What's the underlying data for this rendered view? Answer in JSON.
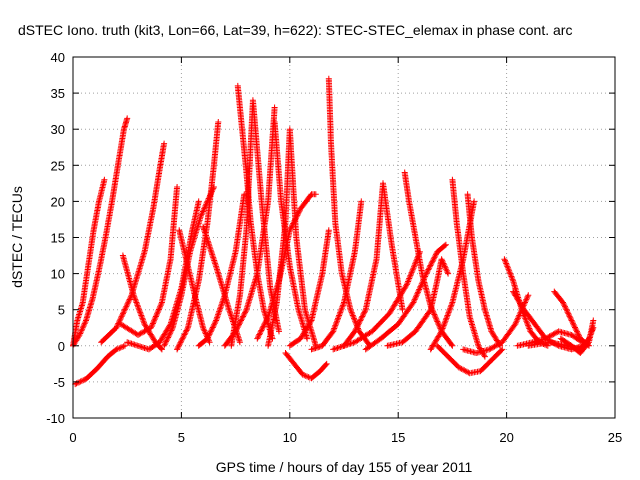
{
  "chart_data": {
    "type": "scatter",
    "title": "dSTEC Iono. truth (kit3, Lon=66, Lat=39, h=622): STEC-STEC_elemax in phase cont. arc",
    "xlabel": "GPS time / hours of day 155 of year 2011",
    "ylabel": "dSTEC  / TECUs",
    "xlim": [
      0,
      25
    ],
    "ylim": [
      -10,
      40
    ],
    "xticks": [
      0,
      5,
      10,
      15,
      20,
      25
    ],
    "yticks": [
      -10,
      -5,
      0,
      5,
      10,
      15,
      20,
      25,
      30,
      35,
      40
    ],
    "grid": true,
    "marker": "+",
    "marker_color": "#ff0000",
    "series": [
      {
        "x": [
          0.0,
          0.2,
          0.45,
          0.7,
          0.95,
          1.2,
          1.45
        ],
        "y": [
          0.0,
          3.5,
          6.0,
          11.0,
          16.0,
          20.0,
          23.0
        ]
      },
      {
        "x": [
          0.0,
          0.3,
          0.6,
          0.9,
          1.2,
          1.5,
          1.8,
          2.1,
          2.35,
          2.5
        ],
        "y": [
          0.0,
          1.5,
          3.5,
          6.5,
          10.5,
          15.0,
          20.0,
          25.5,
          30.0,
          31.5
        ]
      },
      {
        "x": [
          0.1,
          0.6,
          1.1,
          1.6,
          2.0,
          2.4
        ],
        "y": [
          -5.3,
          -4.6,
          -3.2,
          -1.5,
          -0.5,
          0.0
        ]
      },
      {
        "x": [
          2.3,
          2.8,
          3.3,
          3.8,
          4.1
        ],
        "y": [
          12.5,
          7.0,
          3.0,
          0.5,
          -0.5
        ]
      },
      {
        "x": [
          1.3,
          2.0,
          2.7,
          3.3,
          3.7,
          4.0,
          4.2
        ],
        "y": [
          0.5,
          2.5,
          7.0,
          13.0,
          19.0,
          24.5,
          28.0
        ]
      },
      {
        "x": [
          2.2,
          3.0,
          3.6,
          4.1,
          4.5,
          4.8
        ],
        "y": [
          3.0,
          1.5,
          2.5,
          6.0,
          12.0,
          22.0
        ]
      },
      {
        "x": [
          2.5,
          3.5,
          4.0,
          4.5,
          5.0,
          5.5,
          5.8
        ],
        "y": [
          0.5,
          -0.5,
          0.5,
          3.0,
          8.0,
          16.0,
          20.0
        ]
      },
      {
        "x": [
          4.2,
          4.6,
          5.0,
          5.4,
          5.9,
          6.5
        ],
        "y": [
          0.0,
          2.5,
          7.0,
          13.0,
          18.0,
          22.0
        ]
      },
      {
        "x": [
          4.9,
          5.3,
          5.7,
          6.0,
          6.3
        ],
        "y": [
          16.0,
          11.0,
          6.0,
          2.5,
          0.5
        ]
      },
      {
        "x": [
          4.8,
          5.3,
          5.8,
          6.2,
          6.5,
          6.7
        ],
        "y": [
          -0.5,
          2.5,
          9.0,
          17.0,
          25.0,
          31.0
        ]
      },
      {
        "x": [
          5.8,
          6.2,
          6.6,
          7.0,
          7.5,
          7.9
        ],
        "y": [
          0.0,
          1.0,
          3.5,
          7.0,
          13.0,
          21.0
        ]
      },
      {
        "x": [
          6.0,
          6.6,
          7.2,
          7.7
        ],
        "y": [
          16.5,
          11.0,
          5.0,
          0.5
        ]
      },
      {
        "x": [
          7.6,
          7.8,
          8.0,
          8.2,
          8.5,
          8.8,
          9.2
        ],
        "y": [
          36.0,
          30.0,
          24.0,
          17.0,
          10.0,
          5.0,
          1.0
        ]
      },
      {
        "x": [
          7.3,
          7.7,
          8.0,
          8.3,
          8.7,
          9.1,
          9.5
        ],
        "y": [
          0.0,
          7.0,
          16.0,
          34.0,
          20.0,
          8.0,
          2.0
        ]
      },
      {
        "x": [
          7.0,
          7.5,
          8.0,
          8.5,
          9.0,
          9.3
        ],
        "y": [
          0.0,
          2.0,
          5.0,
          10.0,
          20.0,
          33.0
        ]
      },
      {
        "x": [
          9.3,
          9.6,
          10.0,
          10.4,
          10.8
        ],
        "y": [
          31.0,
          20.0,
          11.0,
          5.0,
          1.0
        ]
      },
      {
        "x": [
          9.0,
          9.4,
          9.8,
          10.0,
          10.3,
          10.7,
          11.2
        ],
        "y": [
          0.0,
          6.0,
          17.0,
          30.0,
          15.0,
          5.0,
          0.0
        ]
      },
      {
        "x": [
          8.5,
          9.0,
          9.5,
          10.0,
          10.5,
          11.0,
          11.2
        ],
        "y": [
          1.0,
          4.0,
          9.0,
          16.0,
          19.0,
          21.0,
          21.0
        ]
      },
      {
        "x": [
          9.8,
          10.2,
          10.6,
          11.0,
          11.4,
          11.7
        ],
        "y": [
          -1.0,
          -2.5,
          -4.0,
          -4.5,
          -3.5,
          -2.5
        ]
      },
      {
        "x": [
          10.0,
          10.5,
          11.0,
          11.5,
          11.8
        ],
        "y": [
          0.0,
          1.0,
          3.5,
          10.0,
          16.0
        ]
      },
      {
        "x": [
          11.8,
          11.9,
          12.1,
          12.4,
          12.8,
          13.2,
          13.7
        ],
        "y": [
          37.0,
          28.0,
          17.0,
          10.0,
          5.0,
          2.0,
          0.0
        ]
      },
      {
        "x": [
          11.0,
          11.5,
          12.0,
          12.5,
          13.0,
          13.3
        ],
        "y": [
          -0.5,
          0.0,
          2.0,
          6.0,
          13.0,
          20.0
        ]
      },
      {
        "x": [
          12.5,
          13.0,
          13.5,
          14.0,
          14.3,
          14.7,
          15.2
        ],
        "y": [
          0.0,
          2.0,
          5.0,
          12.0,
          22.5,
          14.0,
          5.0
        ]
      },
      {
        "x": [
          12.0,
          13.0,
          13.8,
          14.6,
          15.4,
          16.0
        ],
        "y": [
          -0.5,
          0.5,
          2.0,
          4.5,
          8.5,
          13.0
        ]
      },
      {
        "x": [
          15.3,
          15.5,
          15.8,
          16.1,
          16.5,
          17.0,
          17.5
        ],
        "y": [
          24.0,
          20.0,
          15.0,
          10.0,
          5.5,
          2.0,
          0.0
        ]
      },
      {
        "x": [
          13.5,
          14.2,
          15.0,
          15.7,
          16.3,
          16.8,
          17.2
        ],
        "y": [
          -0.5,
          1.0,
          3.0,
          6.0,
          10.0,
          13.0,
          14.0
        ]
      },
      {
        "x": [
          14.5,
          15.2,
          15.8,
          16.5,
          16.8,
          17.0,
          17.3
        ],
        "y": [
          0.0,
          0.5,
          2.0,
          5.0,
          9.0,
          12.0,
          10.0
        ]
      },
      {
        "x": [
          16.5,
          17.0,
          17.5,
          18.0,
          18.5
        ],
        "y": [
          -0.5,
          2.0,
          6.0,
          12.0,
          20.0
        ]
      },
      {
        "x": [
          17.5,
          17.7,
          18.0,
          18.3,
          18.7,
          19.0
        ],
        "y": [
          23.0,
          17.0,
          10.0,
          4.0,
          0.0,
          -1.5
        ]
      },
      {
        "x": [
          18.2,
          18.4,
          18.7,
          19.0,
          19.3,
          19.7
        ],
        "y": [
          21.0,
          15.0,
          9.0,
          5.0,
          2.0,
          0.0
        ]
      },
      {
        "x": [
          16.8,
          17.3,
          17.8,
          18.3,
          18.8,
          19.3,
          19.8
        ],
        "y": [
          0.0,
          -1.5,
          -3.0,
          -3.8,
          -3.5,
          -2.0,
          -0.5
        ]
      },
      {
        "x": [
          18.0,
          18.6,
          19.2,
          19.8,
          20.4,
          21.0
        ],
        "y": [
          -0.5,
          -1.0,
          -0.5,
          0.5,
          3.0,
          7.0
        ]
      },
      {
        "x": [
          19.9,
          20.3,
          20.7,
          21.1,
          21.5,
          21.9
        ],
        "y": [
          12.0,
          9.0,
          5.0,
          2.0,
          0.5,
          0.0
        ]
      },
      {
        "x": [
          20.3,
          20.8,
          21.3,
          21.8,
          22.4,
          23.0,
          23.5
        ],
        "y": [
          7.5,
          5.0,
          3.0,
          1.0,
          0.0,
          -0.5,
          0.0
        ]
      },
      {
        "x": [
          20.5,
          21.2,
          21.8,
          22.4,
          23.0,
          23.5
        ],
        "y": [
          0.0,
          0.5,
          1.0,
          2.0,
          1.5,
          0.5
        ]
      },
      {
        "x": [
          22.2,
          22.6,
          23.0,
          23.4,
          23.8
        ],
        "y": [
          7.5,
          6.0,
          3.5,
          1.0,
          0.0
        ]
      },
      {
        "x": [
          22.5,
          23.0,
          23.4,
          23.8,
          24.0
        ],
        "y": [
          1.0,
          0.0,
          -1.0,
          0.5,
          3.5
        ]
      },
      {
        "x": [
          21.0,
          22.0,
          22.8,
          23.4,
          23.8,
          24.0
        ],
        "y": [
          0.0,
          0.5,
          0.0,
          -0.5,
          1.0,
          2.5
        ]
      }
    ]
  }
}
